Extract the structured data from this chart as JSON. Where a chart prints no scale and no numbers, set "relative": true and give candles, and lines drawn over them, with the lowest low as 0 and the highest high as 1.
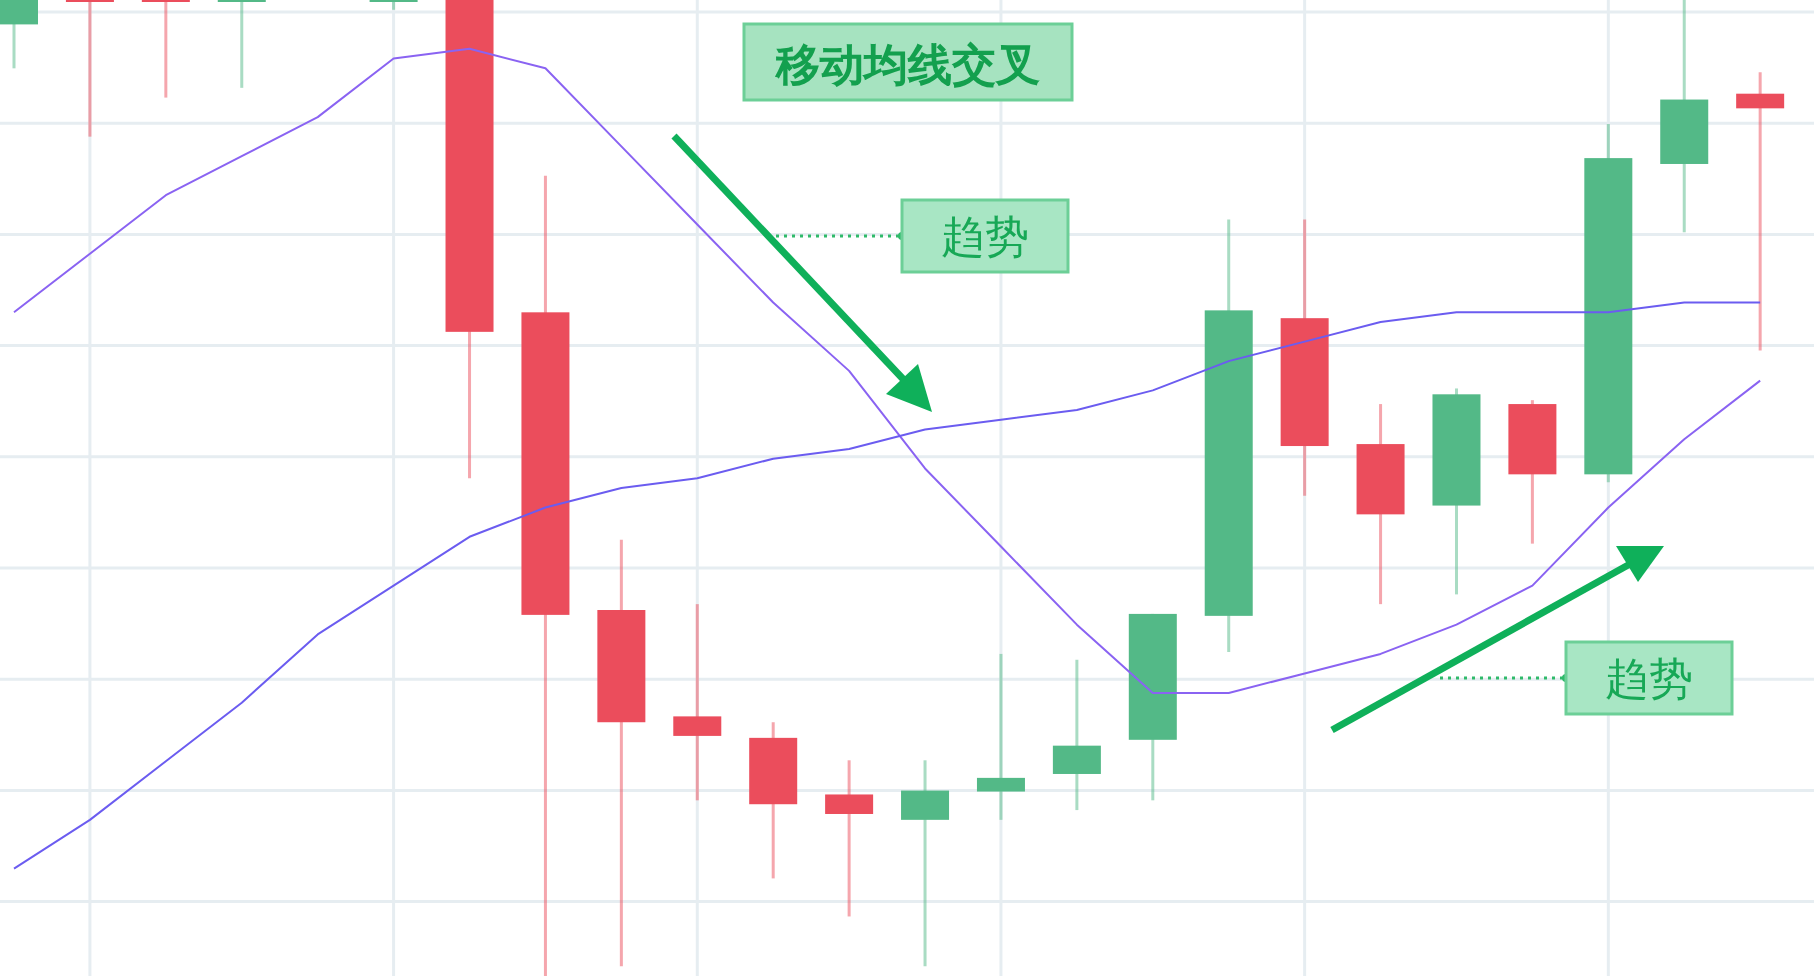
{
  "chart_data": {
    "type": "candlestick",
    "title": "移动均线交叉",
    "relative": true,
    "grid": true,
    "categories": [
      null,
      null,
      null,
      null,
      null,
      null,
      null,
      null,
      null,
      null,
      null,
      null,
      null,
      null,
      null,
      null,
      null,
      null,
      null,
      null,
      null,
      null,
      null,
      null
    ],
    "ohlc": [
      [
        0.975,
        1,
        0.93,
        1
      ],
      [
        1,
        1,
        0.86,
        1
      ],
      [
        1,
        1,
        0.9,
        1
      ],
      [
        1,
        1,
        0.91,
        1
      ],
      null,
      [
        1,
        1,
        0.99,
        1
      ],
      [
        1,
        1,
        0.51,
        0.66
      ],
      [
        0.68,
        0.82,
        0,
        0.37
      ],
      [
        0.375,
        0.447,
        0.01,
        0.26
      ],
      [
        0.266,
        0.381,
        0.18,
        0.246
      ],
      [
        0.244,
        0.26,
        0.1,
        0.176
      ],
      [
        0.186,
        0.221,
        0.061,
        0.166
      ],
      [
        0.16,
        0.221,
        0.01,
        0.19
      ],
      [
        0.189,
        0.33,
        0.16,
        0.203
      ],
      [
        0.207,
        0.324,
        0.17,
        0.236
      ],
      [
        0.242,
        0.371,
        0.18,
        0.371
      ],
      [
        0.369,
        0.775,
        0.332,
        0.682
      ],
      [
        0.674,
        0.775,
        0.492,
        0.543
      ],
      [
        0.545,
        0.586,
        0.381,
        0.473
      ],
      [
        0.482,
        0.602,
        0.391,
        0.596
      ],
      [
        0.586,
        0.59,
        0.443,
        0.514
      ],
      [
        0.514,
        0.873,
        0.506,
        0.838
      ],
      [
        0.832,
        1,
        0.762,
        0.898
      ],
      [
        0.904,
        0.926,
        0.641,
        0.889
      ]
    ],
    "colors": [
      "#53b987",
      "#eb4d5c",
      "#eb4d5c",
      "#53b987",
      null,
      "#53b987",
      "#eb4d5c",
      "#eb4d5c",
      "#eb4d5c",
      "#eb4d5c",
      "#eb4d5c",
      "#eb4d5c",
      "#53b987",
      "#53b987",
      "#53b987",
      "#53b987",
      "#53b987",
      "#eb4d5c",
      "#eb4d5c",
      "#53b987",
      "#eb4d5c",
      "#53b987",
      "#53b987",
      "#eb4d5c"
    ],
    "series": [
      {
        "type": "line",
        "color": "#8a63f2",
        "values": [
          0.68,
          0.74,
          0.8,
          0.84,
          0.88,
          0.94,
          0.95,
          0.93,
          0.85,
          0.77,
          0.69,
          0.62,
          0.52,
          0.44,
          0.36,
          0.29,
          0.29,
          0.31,
          0.33,
          0.36,
          0.4,
          0.48,
          0.55,
          0.61
        ]
      },
      {
        "type": "line",
        "color": "#6b5cf0",
        "values": [
          0.11,
          0.16,
          0.22,
          0.28,
          0.35,
          0.4,
          0.45,
          0.48,
          0.5,
          0.51,
          0.53,
          0.54,
          0.56,
          0.57,
          0.58,
          0.6,
          0.63,
          0.65,
          0.67,
          0.68,
          0.68,
          0.68,
          0.69,
          0.69
        ]
      }
    ],
    "annotations": [
      "趋势",
      "趋势"
    ]
  }
}
